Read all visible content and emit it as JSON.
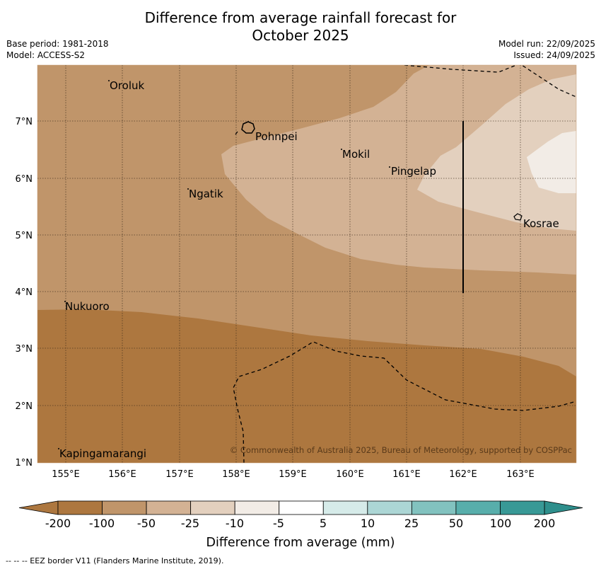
{
  "title_line1": "Difference from average rainfall forecast for",
  "title_line2": "October 2025",
  "meta": {
    "base_period": "Base period: 1981-2018",
    "model": "Model: ACCESS-S2",
    "model_run": "Model run: 22/09/2025",
    "issued": "Issued: 24/09/2025"
  },
  "map": {
    "lon_ticks": [
      "155°E",
      "156°E",
      "157°E",
      "158°E",
      "159°E",
      "160°E",
      "161°E",
      "162°E",
      "163°E"
    ],
    "lat_ticks": [
      "7°N",
      "6°N",
      "5°N",
      "4°N",
      "3°N",
      "2°N",
      "1°N"
    ],
    "places": [
      {
        "name": "Oroluk"
      },
      {
        "name": "Pohnpei"
      },
      {
        "name": "Mokil"
      },
      {
        "name": "Pingelap"
      },
      {
        "name": "Ngatik"
      },
      {
        "name": "Kosrae"
      },
      {
        "name": "Nukuoro"
      },
      {
        "name": "Kapingamarangi"
      }
    ],
    "copyright": "© Commonwealth of Australia 2025, Bureau of Meteorology, supported by COSPPac"
  },
  "colorbar": {
    "ticks": [
      "-200",
      "-100",
      "-50",
      "-25",
      "-10",
      "-5",
      "5",
      "10",
      "25",
      "50",
      "100",
      "200"
    ],
    "colors": [
      "#ad773f",
      "#c0956a",
      "#d3b294",
      "#e3d0be",
      "#f2ece6",
      "#ffffff",
      "#d6ebe9",
      "#acd6d5",
      "#82c2bf",
      "#58aeab",
      "#389996",
      "#2e8f8c"
    ],
    "label": "Difference from average (mm)"
  },
  "footnote": "--  --  -- EEZ border V11 (Flanders Marine Institute, 2019)."
}
